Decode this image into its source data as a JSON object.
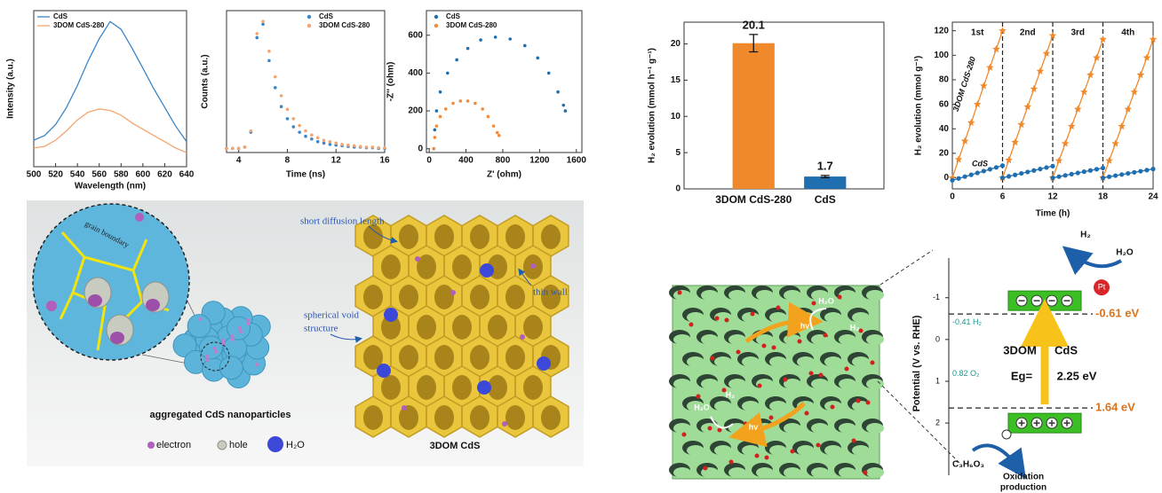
{
  "chart_data": [
    {
      "type": "line",
      "xlabel": "Wavelength (nm)",
      "ylabel": "Intensity (a.u.)",
      "x": [
        500,
        510,
        520,
        530,
        540,
        550,
        560,
        570,
        580,
        590,
        600,
        610,
        620,
        630,
        640
      ],
      "xlim": [
        500,
        640
      ],
      "xticks": [
        500,
        520,
        540,
        560,
        580,
        600,
        620,
        640
      ],
      "ylim": [
        0,
        1
      ],
      "legend": "upper left",
      "series": [
        {
          "name": "CdS",
          "color": "#3b86c6",
          "values": [
            0.17,
            0.2,
            0.27,
            0.38,
            0.52,
            0.68,
            0.82,
            0.93,
            0.88,
            0.76,
            0.63,
            0.5,
            0.38,
            0.26,
            0.16
          ]
        },
        {
          "name": "3DOM CdS-280",
          "color": "#f4a46e",
          "values": [
            0.12,
            0.13,
            0.17,
            0.23,
            0.3,
            0.35,
            0.37,
            0.36,
            0.33,
            0.28,
            0.24,
            0.2,
            0.16,
            0.12,
            0.09
          ]
        }
      ]
    },
    {
      "type": "scatter",
      "xlabel": "Time (ns)",
      "ylabel": "Counts (a.u.)",
      "x": [
        3,
        3.5,
        4,
        4.5,
        5,
        5.5,
        6,
        6.5,
        7,
        7.5,
        8,
        8.5,
        9,
        9.5,
        10,
        10.5,
        11,
        11.5,
        12,
        12.5,
        13,
        13.5,
        14,
        14.5,
        15,
        15.5,
        16
      ],
      "xlim": [
        3,
        16
      ],
      "xticks": [
        4,
        8,
        12,
        16
      ],
      "ylim": [
        0,
        1.05
      ],
      "legend": "upper right",
      "series": [
        {
          "name": "CdS",
          "color": "#3b86c6",
          "values": [
            0.03,
            0.03,
            0.03,
            0.04,
            0.15,
            0.85,
            0.95,
            0.68,
            0.48,
            0.34,
            0.25,
            0.19,
            0.15,
            0.12,
            0.1,
            0.08,
            0.07,
            0.06,
            0.055,
            0.05,
            0.045,
            0.04,
            0.04,
            0.035,
            0.035,
            0.03,
            0.03
          ]
        },
        {
          "name": "3DOM CdS-280",
          "color": "#f4a46e",
          "values": [
            0.03,
            0.03,
            0.03,
            0.04,
            0.16,
            0.88,
            0.97,
            0.75,
            0.56,
            0.42,
            0.32,
            0.25,
            0.2,
            0.16,
            0.13,
            0.11,
            0.09,
            0.08,
            0.07,
            0.06,
            0.055,
            0.05,
            0.045,
            0.04,
            0.04,
            0.035,
            0.035
          ]
        }
      ]
    },
    {
      "type": "scatter",
      "xlabel": "Z' (ohm)",
      "ylabel": "-Z'' (ohm)",
      "xlim": [
        -30,
        1660
      ],
      "xticks": [
        0,
        400,
        800,
        1200,
        1600
      ],
      "ylim": [
        -20,
        730
      ],
      "yticks": [
        0,
        200,
        400,
        600
      ],
      "legend": "upper left",
      "series": [
        {
          "name": "CdS",
          "color": "#1f6fb0",
          "x": [
            50,
            60,
            80,
            120,
            200,
            300,
            420,
            560,
            720,
            880,
            1040,
            1180,
            1300,
            1400,
            1460,
            1480
          ],
          "values": [
            0,
            100,
            200,
            300,
            400,
            470,
            530,
            575,
            590,
            580,
            545,
            480,
            400,
            300,
            230,
            200
          ]
        },
        {
          "name": "3DOM CdS-280",
          "color": "#f08a3c",
          "x": [
            50,
            60,
            80,
            120,
            180,
            260,
            340,
            420,
            500,
            580,
            640,
            700,
            740,
            760
          ],
          "values": [
            0,
            60,
            120,
            170,
            210,
            240,
            252,
            252,
            240,
            210,
            170,
            120,
            85,
            70
          ]
        }
      ]
    },
    {
      "type": "bar",
      "ylabel": "H₂ evolution (mmol h⁻¹ g⁻¹)",
      "categories": [
        "3DOM CdS-280",
        "CdS"
      ],
      "values": [
        20.1,
        1.7
      ],
      "errors": [
        1.2,
        0.15
      ],
      "colors": [
        "#f0892c",
        "#1f6fb0"
      ],
      "ylim": [
        0,
        23
      ],
      "yticks": [
        0,
        5,
        10,
        15,
        20
      ]
    },
    {
      "type": "line",
      "xlabel": "Time (h)",
      "ylabel": "H₂ evolution (mmol g⁻¹)",
      "x": [
        0,
        0.75,
        1.5,
        2.25,
        3,
        3.75,
        4.5,
        5.25,
        6,
        null,
        6,
        6.75,
        7.5,
        8.25,
        9,
        9.75,
        10.5,
        11.25,
        12,
        null,
        12,
        12.75,
        13.5,
        14.25,
        15,
        15.75,
        16.5,
        17.25,
        18,
        null,
        18,
        18.75,
        19.5,
        20.25,
        21,
        21.75,
        22.5,
        23.25,
        24
      ],
      "xlim": [
        0,
        24
      ],
      "xticks": [
        0,
        6,
        12,
        18,
        24
      ],
      "ylim": [
        -9,
        127
      ],
      "yticks": [
        0,
        20,
        40,
        60,
        80,
        100,
        120
      ],
      "vlines": [
        6,
        12,
        18
      ],
      "cycle_labels": [
        "1st",
        "2nd",
        "3rd",
        "4th"
      ],
      "legend": "inline",
      "series": [
        {
          "name": "3DOM CdS-280",
          "color": "#f0892c",
          "marker": "star",
          "values": [
            0,
            15,
            30,
            45,
            60,
            75,
            90,
            105,
            120,
            null,
            0,
            14.5,
            29,
            43.5,
            58,
            72.5,
            87,
            101.5,
            116,
            null,
            0,
            14,
            28,
            42,
            56,
            70,
            84,
            98,
            113,
            null,
            0,
            14,
            28,
            42,
            56,
            70,
            84,
            98,
            113
          ]
        },
        {
          "name": "CdS",
          "color": "#1f6fb0",
          "marker": "circle",
          "values": [
            -2,
            -0.5,
            1,
            2.5,
            4,
            5.5,
            7,
            8.5,
            10,
            null,
            0,
            1.2,
            2.4,
            3.6,
            4.8,
            6,
            7.2,
            8.4,
            9.6,
            null,
            0,
            1,
            2,
            3,
            4,
            5,
            6,
            7,
            8,
            null,
            0,
            0.9,
            1.8,
            2.7,
            3.6,
            4.5,
            5.4,
            6.3,
            7.2
          ]
        }
      ]
    }
  ],
  "schematic": {
    "grain_boundary": "grain boundary",
    "short_diffusion": "short diffusion length",
    "thin_wall": "thin wall",
    "spherical_void": [
      "spherical void",
      "structure"
    ],
    "aggregated": "aggregated CdS nanoparticles",
    "dom": "3DOM CdS",
    "legend": [
      "electron",
      "hole",
      "H₂O"
    ]
  },
  "band_diagram": {
    "ylabel": "Potential (V vs. RHE)",
    "ylim": [
      -1.95,
      3.25
    ],
    "yticks": [
      -1,
      0,
      1,
      2
    ],
    "levels": [
      {
        "value": -0.61,
        "label": "-0.61 eV"
      },
      {
        "value": 1.64,
        "label": "1.64 eV"
      }
    ],
    "redox": [
      {
        "value": -0.41,
        "label": "-0.41 H₂"
      },
      {
        "value": 0.82,
        "label": "0.82 O₂"
      }
    ],
    "material": [
      "3DOM",
      "CdS"
    ],
    "gap": [
      "Eg=",
      "2.25 eV"
    ],
    "cocatalyst": "Pt",
    "reduction": [
      "H₂",
      "H₂O"
    ],
    "sacrificial": "C₃H₆O₃",
    "product": [
      "Oxidation",
      "production"
    ],
    "photo_labels": [
      "H₂O",
      "hv",
      "H₂",
      "H₂O",
      "H₂",
      "hv"
    ]
  }
}
